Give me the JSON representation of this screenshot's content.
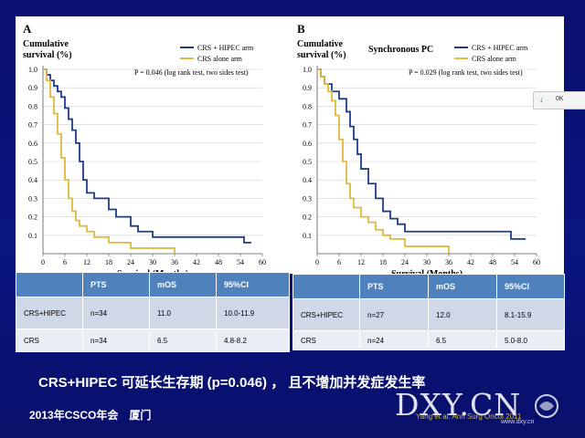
{
  "panels": [
    {
      "letter": "A",
      "ylabel_line1": "Cumulative",
      "ylabel_line2": "survival (%)",
      "subtitle": "",
      "pvalue": "P = 0.046 (log rank test, two sides test)",
      "xlabel": "Survival (Months)"
    },
    {
      "letter": "B",
      "ylabel_line1": "Cumulative",
      "ylabel_line2": "survival (%)",
      "subtitle": "Synchronous PC",
      "pvalue": "P = 0.029 (log rank test, two sides test)",
      "xlabel": "Survival (Months)"
    }
  ],
  "tables": [
    {
      "headers": [
        "",
        "PTS",
        "mOS",
        "95%CI"
      ],
      "rows": [
        [
          "CRS+HIPEC",
          "n=34",
          "11.0",
          "10.0-11.9"
        ],
        [
          "CRS",
          "n=34",
          "6.5",
          "4.8-8.2"
        ]
      ]
    },
    {
      "headers": [
        "",
        "PTS",
        "mOS",
        "95%CI"
      ],
      "rows": [
        [
          "CRS+HIPEC",
          "n=27",
          "12.0",
          "8.1-15.9"
        ],
        [
          "CRS",
          "n=24",
          "6.5",
          "5.0-8.0"
        ]
      ]
    }
  ],
  "caption": "CRS+HIPEC 可延长生存期 (p=0.046) ， 且不增加并发症发生率",
  "footer": "2013年CSCO年会　厦门",
  "credit": "Yang et al. Ann Surg Oncol 2011",
  "watermark": "DXY.CN",
  "watermark_url": "www.dxy.cn",
  "widget": {
    "label": "0K"
  },
  "colors": {
    "hipec": "#1f3c88",
    "crs": "#e2b93b",
    "slide_bg": "#0b1580",
    "header": "#4f81bd"
  },
  "chart_data": [
    {
      "type": "line",
      "step": true,
      "title": "A",
      "xlabel": "Survival (Months)",
      "ylabel": "Cumulative survival (%)",
      "xlim": [
        0,
        60
      ],
      "ylim": [
        0,
        1.0
      ],
      "xticks": [
        0,
        6,
        12,
        18,
        24,
        30,
        36,
        42,
        48,
        54,
        60
      ],
      "yticks": [
        0.1,
        0.2,
        0.3,
        0.4,
        0.5,
        0.6,
        0.7,
        0.8,
        0.9,
        1.0
      ],
      "legend": "top-right",
      "series": [
        {
          "name": "CRS + HIPEC arm",
          "x": [
            0,
            1,
            2,
            3,
            4,
            5,
            6,
            7,
            8,
            9,
            10,
            11,
            12,
            14,
            18,
            20,
            24,
            26,
            30,
            55,
            57
          ],
          "y": [
            1.0,
            0.97,
            0.94,
            0.91,
            0.88,
            0.85,
            0.79,
            0.73,
            0.67,
            0.6,
            0.5,
            0.4,
            0.33,
            0.3,
            0.24,
            0.2,
            0.15,
            0.12,
            0.09,
            0.06,
            0.06
          ]
        },
        {
          "name": "CRS alone arm",
          "x": [
            0,
            1,
            2,
            3,
            4,
            5,
            6,
            7,
            8,
            9,
            10,
            12,
            14,
            18,
            24,
            30,
            36
          ],
          "y": [
            1.0,
            0.94,
            0.85,
            0.76,
            0.65,
            0.52,
            0.4,
            0.3,
            0.23,
            0.18,
            0.15,
            0.12,
            0.09,
            0.06,
            0.03,
            0.03,
            0.0
          ]
        }
      ]
    },
    {
      "type": "line",
      "step": true,
      "title": "B",
      "subtitle": "Synchronous PC",
      "xlabel": "Survival (Months)",
      "ylabel": "Cumulative survival (%)",
      "xlim": [
        0,
        60
      ],
      "ylim": [
        0,
        1.0
      ],
      "xticks": [
        0,
        6,
        12,
        18,
        24,
        30,
        36,
        42,
        48,
        54,
        60
      ],
      "yticks": [
        0.1,
        0.2,
        0.3,
        0.4,
        0.5,
        0.6,
        0.7,
        0.8,
        0.9,
        1.0
      ],
      "legend": "top-right",
      "series": [
        {
          "name": "CRS + HIPEC arm",
          "x": [
            0,
            1,
            2,
            4,
            6,
            8,
            9,
            10,
            11,
            12,
            14,
            16,
            18,
            20,
            22,
            24,
            53,
            55,
            57
          ],
          "y": [
            1.0,
            0.96,
            0.92,
            0.88,
            0.84,
            0.77,
            0.69,
            0.62,
            0.54,
            0.46,
            0.38,
            0.3,
            0.23,
            0.19,
            0.16,
            0.12,
            0.08,
            0.08,
            0.08
          ]
        },
        {
          "name": "CRS alone arm",
          "x": [
            0,
            1,
            2,
            3,
            4,
            5,
            6,
            7,
            8,
            9,
            10,
            12,
            14,
            16,
            18,
            20,
            24,
            36
          ],
          "y": [
            1.0,
            0.96,
            0.92,
            0.88,
            0.83,
            0.75,
            0.62,
            0.5,
            0.38,
            0.3,
            0.25,
            0.2,
            0.17,
            0.13,
            0.1,
            0.08,
            0.04,
            0.0
          ]
        }
      ]
    }
  ]
}
